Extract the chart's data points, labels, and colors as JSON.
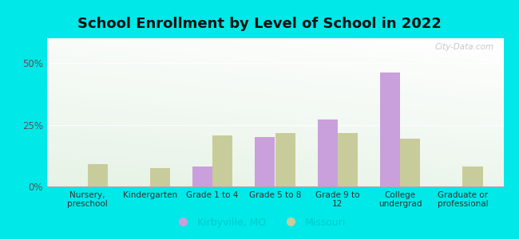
{
  "title": "School Enrollment by Level of School in 2022",
  "categories": [
    "Nursery,\npreschool",
    "Kindergarten",
    "Grade 1 to 4",
    "Grade 5 to 8",
    "Grade 9 to\n12",
    "College\nundergrad",
    "Graduate or\nprofessional"
  ],
  "kirbyville": [
    0,
    0,
    8.0,
    20.0,
    27.0,
    46.0,
    0
  ],
  "missouri": [
    9.0,
    7.5,
    20.5,
    21.5,
    21.5,
    19.5,
    8.0
  ],
  "kirbyville_color": "#c9a0dc",
  "missouri_color": "#c8cc9a",
  "background_outer": "#00e8e8",
  "ylabel_ticks": [
    "0%",
    "25%",
    "50%"
  ],
  "ytick_vals": [
    0,
    25,
    50
  ],
  "ylim": [
    0,
    60
  ],
  "title_fontsize": 13,
  "legend_label_kirbyville": "Kirbyville, MO",
  "legend_label_missouri": "Missouri",
  "bar_width": 0.32,
  "watermark": "City-Data.com"
}
